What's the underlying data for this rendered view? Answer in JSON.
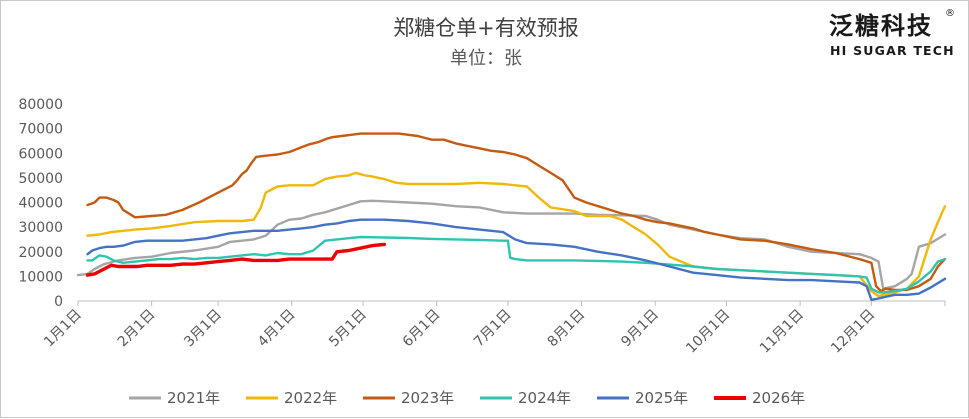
{
  "logo": {
    "name": "泛糖科技",
    "tagline": "HI SUGAR TECH",
    "mark": "®"
  },
  "chart_data": {
    "type": "line",
    "title": "郑糖仓单+有效预报",
    "subtitle": "单位：张",
    "ylim": [
      0,
      80000
    ],
    "yticks": [
      0,
      10000,
      20000,
      30000,
      40000,
      50000,
      60000,
      70000,
      80000
    ],
    "xlim": [
      1,
      366
    ],
    "xticks": [
      {
        "label": "1月1日",
        "day": 1
      },
      {
        "label": "2月1日",
        "day": 32
      },
      {
        "label": "3月1日",
        "day": 60
      },
      {
        "label": "4月1日",
        "day": 91
      },
      {
        "label": "5月1日",
        "day": 121
      },
      {
        "label": "6月1日",
        "day": 152
      },
      {
        "label": "7月1日",
        "day": 182
      },
      {
        "label": "8月1日",
        "day": 213
      },
      {
        "label": "9月1日",
        "day": 244
      },
      {
        "label": "10月1日",
        "day": 274
      },
      {
        "label": "11月1日",
        "day": 305
      },
      {
        "label": "12月1日",
        "day": 335
      }
    ],
    "grid": false,
    "legend_position": "bottom",
    "series": [
      {
        "name": "2021年",
        "color": "#a5a5a5",
        "x": [
          1,
          5,
          8,
          12,
          18,
          25,
          32,
          40,
          50,
          60,
          65,
          70,
          75,
          80,
          85,
          90,
          95,
          100,
          105,
          110,
          115,
          120,
          125,
          130,
          140,
          150,
          160,
          170,
          180,
          190,
          200,
          210,
          220,
          230,
          240,
          245,
          250,
          255,
          260,
          270,
          280,
          290,
          300,
          310,
          320,
          330,
          335,
          338,
          340,
          345,
          350,
          352,
          355,
          360,
          366
        ],
        "y": [
          10500,
          11000,
          13000,
          15000,
          16500,
          17500,
          18000,
          19500,
          20500,
          22000,
          24000,
          24500,
          25000,
          26500,
          31000,
          33000,
          33500,
          35000,
          36000,
          37500,
          39000,
          40500,
          40700,
          40500,
          40000,
          39500,
          38500,
          38000,
          36000,
          35500,
          35500,
          35500,
          35000,
          34800,
          34500,
          33000,
          31000,
          30000,
          29000,
          27000,
          25500,
          25000,
          22000,
          20000,
          19500,
          19000,
          17500,
          16000,
          5000,
          6000,
          9000,
          11000,
          22000,
          23500,
          27000
        ]
      },
      {
        "name": "2022年",
        "color": "#f0b80a",
        "x": [
          5,
          10,
          15,
          20,
          25,
          32,
          40,
          50,
          60,
          70,
          75,
          78,
          80,
          85,
          90,
          95,
          100,
          105,
          110,
          115,
          118,
          120,
          122,
          125,
          130,
          135,
          140,
          150,
          160,
          170,
          180,
          185,
          190,
          195,
          200,
          210,
          215,
          220,
          225,
          230,
          235,
          240,
          245,
          250,
          255,
          260,
          265,
          270,
          280,
          290,
          300,
          310,
          320,
          330,
          335,
          338,
          340,
          345,
          350,
          355,
          360,
          363,
          366
        ],
        "y": [
          26500,
          27000,
          28000,
          28500,
          29000,
          29500,
          30500,
          32000,
          32500,
          32500,
          33000,
          38000,
          44000,
          46500,
          47000,
          47000,
          47000,
          49500,
          50500,
          51000,
          52000,
          51500,
          51000,
          50500,
          49500,
          48000,
          47500,
          47500,
          47500,
          48000,
          47500,
          47000,
          46500,
          42000,
          38000,
          36500,
          34500,
          34500,
          34500,
          33000,
          30000,
          27000,
          23000,
          18000,
          16000,
          14000,
          13500,
          13000,
          12500,
          12000,
          11500,
          11000,
          10500,
          10000,
          4000,
          2000,
          2500,
          3500,
          5000,
          10000,
          25000,
          32000,
          38500
        ]
      },
      {
        "name": "2023年",
        "color": "#c55a11",
        "x": [
          5,
          8,
          10,
          13,
          16,
          18,
          20,
          25,
          32,
          38,
          45,
          52,
          58,
          62,
          66,
          68,
          70,
          72,
          74,
          76,
          80,
          85,
          90,
          94,
          98,
          102,
          106,
          108,
          112,
          116,
          120,
          124,
          128,
          132,
          136,
          140,
          144,
          148,
          150,
          155,
          160,
          165,
          170,
          175,
          180,
          185,
          190,
          195,
          200,
          205,
          210,
          215,
          220,
          225,
          230,
          235,
          240,
          245,
          250,
          255,
          260,
          265,
          270,
          280,
          290,
          300,
          310,
          320,
          330,
          335,
          337,
          339,
          341,
          345,
          350,
          355,
          360,
          363,
          366
        ],
        "y": [
          39000,
          40000,
          42000,
          42000,
          41000,
          40000,
          37000,
          34000,
          34500,
          35000,
          37000,
          40000,
          43000,
          45000,
          47000,
          49000,
          51500,
          53000,
          56000,
          58500,
          59000,
          59500,
          60500,
          62000,
          63500,
          64500,
          66000,
          66500,
          67000,
          67500,
          68000,
          68000,
          68000,
          68000,
          68000,
          67500,
          67000,
          66000,
          65500,
          65500,
          64000,
          63000,
          62000,
          61000,
          60500,
          59500,
          58000,
          55000,
          52000,
          49000,
          42000,
          40000,
          38500,
          37000,
          35500,
          34500,
          33000,
          32000,
          31500,
          30500,
          29500,
          28000,
          27000,
          25000,
          24500,
          23000,
          21000,
          19500,
          17000,
          15500,
          6000,
          4000,
          5000,
          4500,
          4500,
          6000,
          9000,
          14000,
          17000
        ]
      },
      {
        "name": "2024年",
        "color": "#2ec4b0",
        "x": [
          5,
          7,
          10,
          13,
          16,
          20,
          25,
          30,
          35,
          40,
          45,
          50,
          55,
          60,
          65,
          70,
          75,
          80,
          85,
          90,
          95,
          100,
          105,
          110,
          115,
          120,
          130,
          140,
          150,
          160,
          170,
          180,
          182,
          183,
          185,
          190,
          200,
          210,
          220,
          230,
          240,
          250,
          260,
          270,
          280,
          290,
          300,
          310,
          320,
          330,
          333,
          335,
          338,
          340,
          345,
          350,
          355,
          360,
          363,
          366
        ],
        "y": [
          16500,
          16500,
          18500,
          18000,
          16500,
          15500,
          16000,
          16500,
          17000,
          17000,
          17500,
          17000,
          17500,
          17500,
          18000,
          18500,
          19000,
          18500,
          19500,
          19000,
          19000,
          20500,
          24500,
          25000,
          25500,
          26000,
          25800,
          25600,
          25200,
          25000,
          24800,
          24500,
          24500,
          17500,
          17000,
          16500,
          16500,
          16500,
          16300,
          16000,
          15500,
          14800,
          14000,
          13000,
          12500,
          12000,
          11500,
          11000,
          10500,
          10000,
          9500,
          5000,
          3500,
          3500,
          4000,
          5000,
          8000,
          12000,
          16000,
          17000
        ]
      },
      {
        "name": "2025年",
        "color": "#4472c4",
        "x": [
          5,
          7,
          10,
          13,
          16,
          20,
          25,
          30,
          35,
          40,
          45,
          50,
          55,
          60,
          65,
          70,
          75,
          80,
          85,
          90,
          95,
          100,
          105,
          110,
          115,
          120,
          125,
          130,
          140,
          150,
          160,
          170,
          180,
          185,
          190,
          200,
          210,
          220,
          230,
          240,
          250,
          260,
          270,
          280,
          290,
          300,
          310,
          320,
          330,
          333,
          335,
          338,
          340,
          345,
          350,
          355,
          360,
          366
        ],
        "y": [
          19000,
          20500,
          21500,
          22000,
          22000,
          22500,
          24000,
          24500,
          24500,
          24500,
          24500,
          25000,
          25500,
          26500,
          27500,
          28000,
          28500,
          28500,
          28500,
          29000,
          29500,
          30000,
          31000,
          31500,
          32500,
          33000,
          33000,
          33000,
          32500,
          31500,
          30000,
          29000,
          28000,
          25000,
          23500,
          23000,
          22000,
          20000,
          18500,
          16500,
          14000,
          11500,
          10500,
          9500,
          9000,
          8500,
          8500,
          8000,
          7500,
          6000,
          500,
          1000,
          1500,
          2500,
          2500,
          3000,
          5500,
          9000
        ]
      },
      {
        "name": "2026年",
        "color": "#ee0000",
        "x": [
          5,
          8,
          12,
          15,
          18,
          22,
          26,
          30,
          35,
          40,
          45,
          50,
          55,
          60,
          65,
          70,
          75,
          80,
          85,
          90,
          95,
          100,
          105,
          108,
          110,
          115,
          120,
          125,
          130
        ],
        "y": [
          10500,
          11000,
          13000,
          14500,
          14000,
          14000,
          14000,
          14500,
          14500,
          14500,
          15000,
          15000,
          15500,
          16000,
          16500,
          17000,
          16500,
          16500,
          16500,
          17000,
          17000,
          17000,
          17000,
          17000,
          20000,
          20500,
          21500,
          22500,
          23000
        ]
      }
    ]
  }
}
